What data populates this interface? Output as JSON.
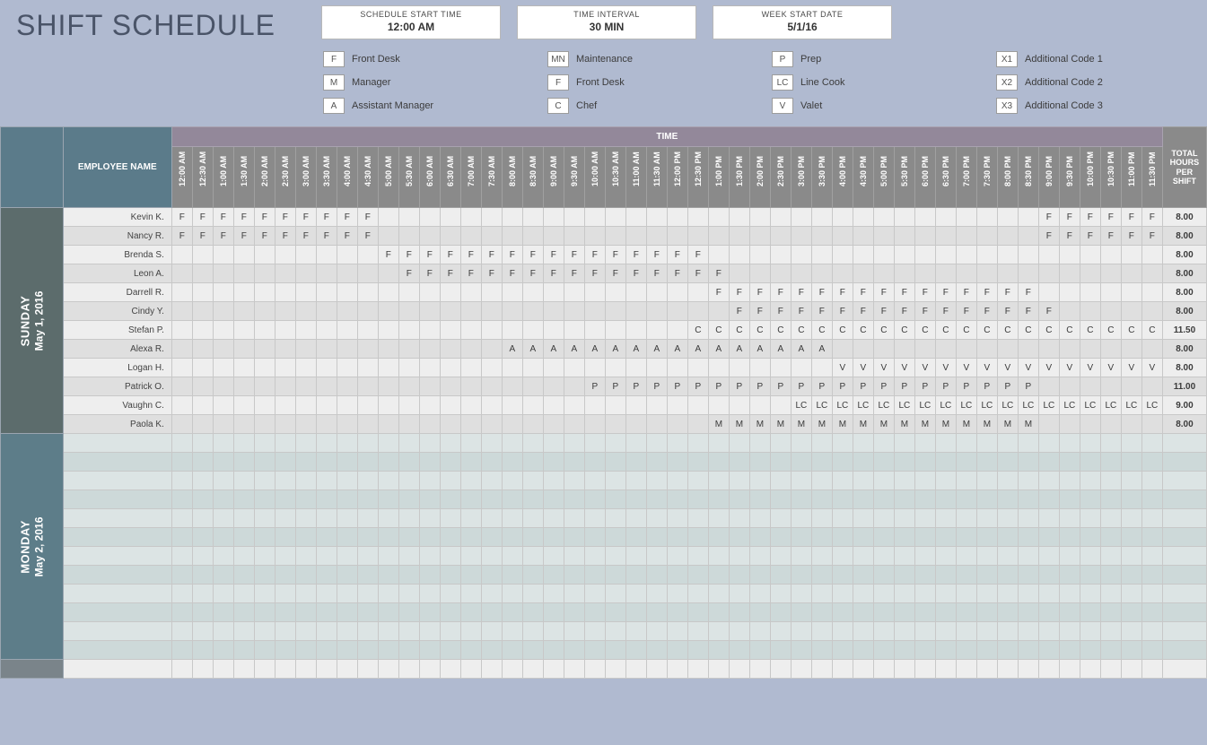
{
  "title": "SHIFT SCHEDULE",
  "params": [
    {
      "label": "SCHEDULE START TIME",
      "value": "12:00 AM"
    },
    {
      "label": "TIME INTERVAL",
      "value": "30 MIN"
    },
    {
      "label": "WEEK START DATE",
      "value": "5/1/16"
    }
  ],
  "legend": [
    [
      {
        "code": "F",
        "label": "Front Desk"
      },
      {
        "code": "M",
        "label": "Manager"
      },
      {
        "code": "A",
        "label": "Assistant Manager"
      }
    ],
    [
      {
        "code": "MN",
        "label": "Maintenance"
      },
      {
        "code": "F",
        "label": "Front Desk"
      },
      {
        "code": "C",
        "label": "Chef"
      }
    ],
    [
      {
        "code": "P",
        "label": "Prep"
      },
      {
        "code": "LC",
        "label": "Line Cook"
      },
      {
        "code": "V",
        "label": "Valet"
      }
    ],
    [
      {
        "code": "X1",
        "label": "Additional Code 1"
      },
      {
        "code": "X2",
        "label": "Additional Code 2"
      },
      {
        "code": "X3",
        "label": "Additional Code 3"
      }
    ]
  ],
  "headers": {
    "employee": "EMPLOYEE NAME",
    "time_banner": "TIME",
    "total": "TOTAL HOURS PER SHIFT"
  },
  "time_slots": [
    "12:00 AM",
    "12:30 AM",
    "1:00 AM",
    "1:30 AM",
    "2:00 AM",
    "2:30 AM",
    "3:00 AM",
    "3:30 AM",
    "4:00 AM",
    "4:30 AM",
    "5:00 AM",
    "5:30 AM",
    "6:00 AM",
    "6:30 AM",
    "7:00 AM",
    "7:30 AM",
    "8:00 AM",
    "8:30 AM",
    "9:00 AM",
    "9:30 AM",
    "10:00 AM",
    "10:30 AM",
    "11:00 AM",
    "11:30 AM",
    "12:00 PM",
    "12:30 PM",
    "1:00 PM",
    "1:30 PM",
    "2:00 PM",
    "2:30 PM",
    "3:00 PM",
    "3:30 PM",
    "4:00 PM",
    "4:30 PM",
    "5:00 PM",
    "5:30 PM",
    "6:00 PM",
    "6:30 PM",
    "7:00 PM",
    "7:30 PM",
    "8:00 PM",
    "8:30 PM",
    "9:00 PM",
    "9:30 PM",
    "10:00 PM",
    "10:30 PM",
    "11:00 PM",
    "11:30 PM"
  ],
  "days": [
    {
      "name": "SUNDAY",
      "date": "May 1, 2016",
      "bg": "#5c6c6c",
      "rows": [
        {
          "employee": "Kevin K.",
          "total": "8.00",
          "fill": {
            "code": "F",
            "ranges": [
              [
                0,
                9
              ],
              [
                42,
                47
              ]
            ]
          }
        },
        {
          "employee": "Nancy R.",
          "total": "8.00",
          "fill": {
            "code": "F",
            "ranges": [
              [
                0,
                9
              ],
              [
                42,
                47
              ]
            ]
          }
        },
        {
          "employee": "Brenda S.",
          "total": "8.00",
          "fill": {
            "code": "F",
            "ranges": [
              [
                10,
                25
              ]
            ]
          }
        },
        {
          "employee": "Leon A.",
          "total": "8.00",
          "fill": {
            "code": "F",
            "ranges": [
              [
                11,
                26
              ]
            ]
          }
        },
        {
          "employee": "Darrell R.",
          "total": "8.00",
          "fill": {
            "code": "F",
            "ranges": [
              [
                26,
                41
              ]
            ]
          }
        },
        {
          "employee": "Cindy Y.",
          "total": "8.00",
          "fill": {
            "code": "F",
            "ranges": [
              [
                27,
                42
              ]
            ]
          }
        },
        {
          "employee": "Stefan P.",
          "total": "11.50",
          "fill": {
            "code": "C",
            "ranges": [
              [
                25,
                47
              ]
            ]
          }
        },
        {
          "employee": "Alexa R.",
          "total": "8.00",
          "fill": {
            "code": "A",
            "ranges": [
              [
                16,
                31
              ]
            ]
          }
        },
        {
          "employee": "Logan H.",
          "total": "8.00",
          "fill": {
            "code": "V",
            "ranges": [
              [
                32,
                47
              ]
            ]
          }
        },
        {
          "employee": "Patrick O.",
          "total": "11.00",
          "fill": {
            "code": "P",
            "ranges": [
              [
                20,
                41
              ]
            ]
          }
        },
        {
          "employee": "Vaughn C.",
          "total": "9.00",
          "fill": {
            "code": "LC",
            "ranges": [
              [
                30,
                47
              ]
            ]
          }
        },
        {
          "employee": "Paola K.",
          "total": "8.00",
          "fill": {
            "code": "M",
            "ranges": [
              [
                26,
                41
              ]
            ]
          }
        }
      ]
    },
    {
      "name": "MONDAY",
      "date": "May 2, 2016",
      "bg": "#5d7d89",
      "rows": [
        {},
        {},
        {},
        {},
        {},
        {},
        {},
        {},
        {},
        {},
        {},
        {}
      ]
    },
    {
      "name": "",
      "date": "",
      "bg": "#7a848a",
      "rows": [
        {}
      ]
    }
  ],
  "colors": {
    "page_bg": "#b0bad0",
    "title_color": "#4a5468",
    "name_header_bg": "#5b7b8a",
    "time_banner_bg": "#93889a",
    "time_slot_bg": "#8a8a8a",
    "row_alt_a": "#eeeeee",
    "row_alt_b": "#dfdfdf",
    "row_alt_a_d1": "#dce4e4",
    "row_alt_b_d1": "#cdd9d9",
    "cell_border": "#c8c8c8"
  }
}
